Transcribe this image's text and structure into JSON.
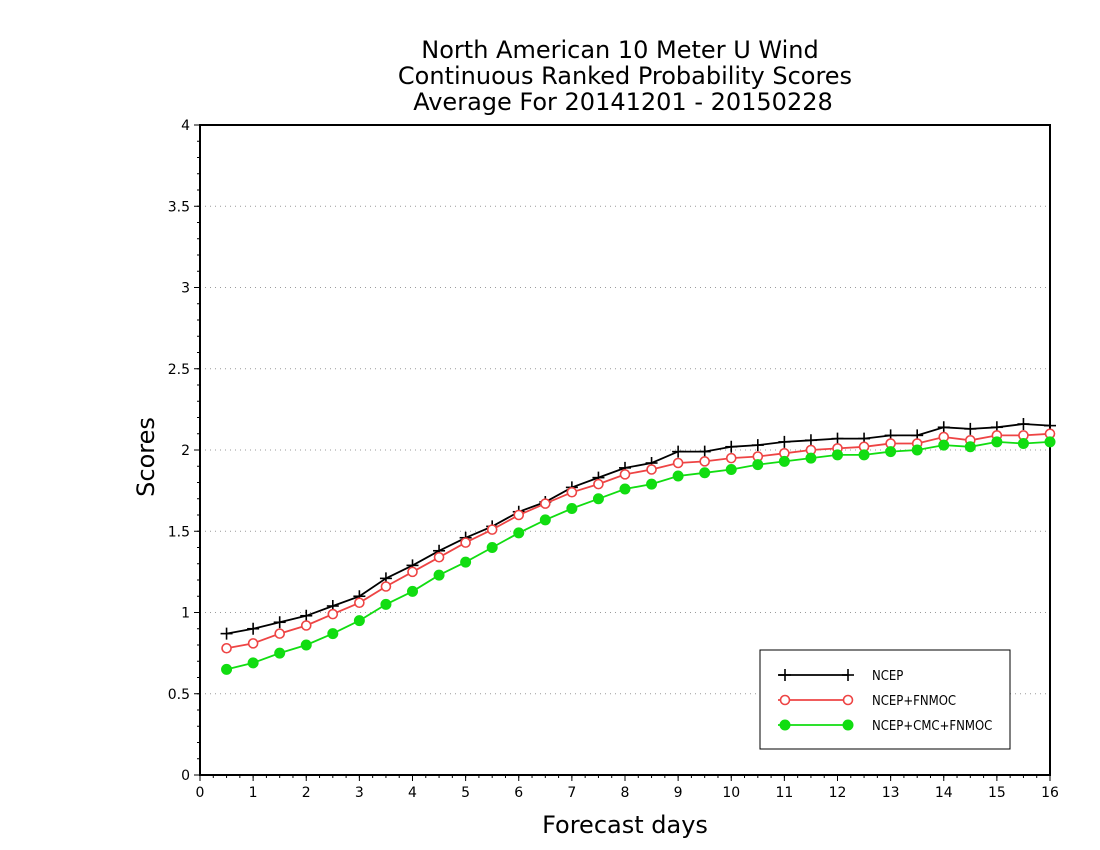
{
  "chart_data": {
    "type": "line",
    "title": [
      "North American 10 Meter U Wind",
      "Continuous Ranked Probability Scores",
      "Average For 20141201 - 20150228"
    ],
    "xlabel": "Forecast days",
    "ylabel": "Scores",
    "xlim": [
      0,
      16
    ],
    "ylim": [
      0,
      4
    ],
    "xticks": [
      0,
      1,
      2,
      3,
      4,
      5,
      6,
      7,
      8,
      9,
      10,
      11,
      12,
      13,
      14,
      15,
      16
    ],
    "yticks": [
      0,
      0.5,
      1,
      1.5,
      2,
      2.5,
      3,
      3.5,
      4
    ],
    "ytick_labels": [
      "0",
      "0.5",
      "1",
      "1.5",
      "2",
      "2.5",
      "3",
      "3.5",
      "4"
    ],
    "grid": "horizontal dotted",
    "legend_position": "bottom-right",
    "x": [
      0.5,
      1,
      1.5,
      2,
      2.5,
      3,
      3.5,
      4,
      4.5,
      5,
      5.5,
      6,
      6.5,
      7,
      7.5,
      8,
      8.5,
      9,
      9.5,
      10,
      10.5,
      11,
      11.5,
      12,
      12.5,
      13,
      13.5,
      14,
      14.5,
      15,
      15.5,
      16
    ],
    "series": [
      {
        "name": "NCEP",
        "color": "#000000",
        "marker": "plus",
        "values": [
          0.87,
          0.9,
          0.94,
          0.98,
          1.04,
          1.1,
          1.21,
          1.29,
          1.38,
          1.46,
          1.53,
          1.62,
          1.68,
          1.77,
          1.83,
          1.89,
          1.92,
          1.99,
          1.99,
          2.02,
          2.03,
          2.05,
          2.06,
          2.07,
          2.07,
          2.09,
          2.09,
          2.14,
          2.13,
          2.14,
          2.16,
          2.15
        ]
      },
      {
        "name": "NCEP+FNMOC",
        "color": "#ee4444",
        "marker": "open-circle",
        "values": [
          0.78,
          0.81,
          0.87,
          0.92,
          0.99,
          1.06,
          1.16,
          1.25,
          1.34,
          1.43,
          1.51,
          1.6,
          1.67,
          1.74,
          1.79,
          1.85,
          1.88,
          1.92,
          1.93,
          1.95,
          1.96,
          1.98,
          2.0,
          2.01,
          2.02,
          2.04,
          2.04,
          2.08,
          2.06,
          2.09,
          2.09,
          2.1
        ]
      },
      {
        "name": "NCEP+CMC+FNMOC",
        "color": "#11dd11",
        "marker": "filled-circle",
        "values": [
          0.65,
          0.69,
          0.75,
          0.8,
          0.87,
          0.95,
          1.05,
          1.13,
          1.23,
          1.31,
          1.4,
          1.49,
          1.57,
          1.64,
          1.7,
          1.76,
          1.79,
          1.84,
          1.86,
          1.88,
          1.91,
          1.93,
          1.95,
          1.97,
          1.97,
          1.99,
          2.0,
          2.03,
          2.02,
          2.05,
          2.04,
          2.05
        ]
      }
    ]
  }
}
